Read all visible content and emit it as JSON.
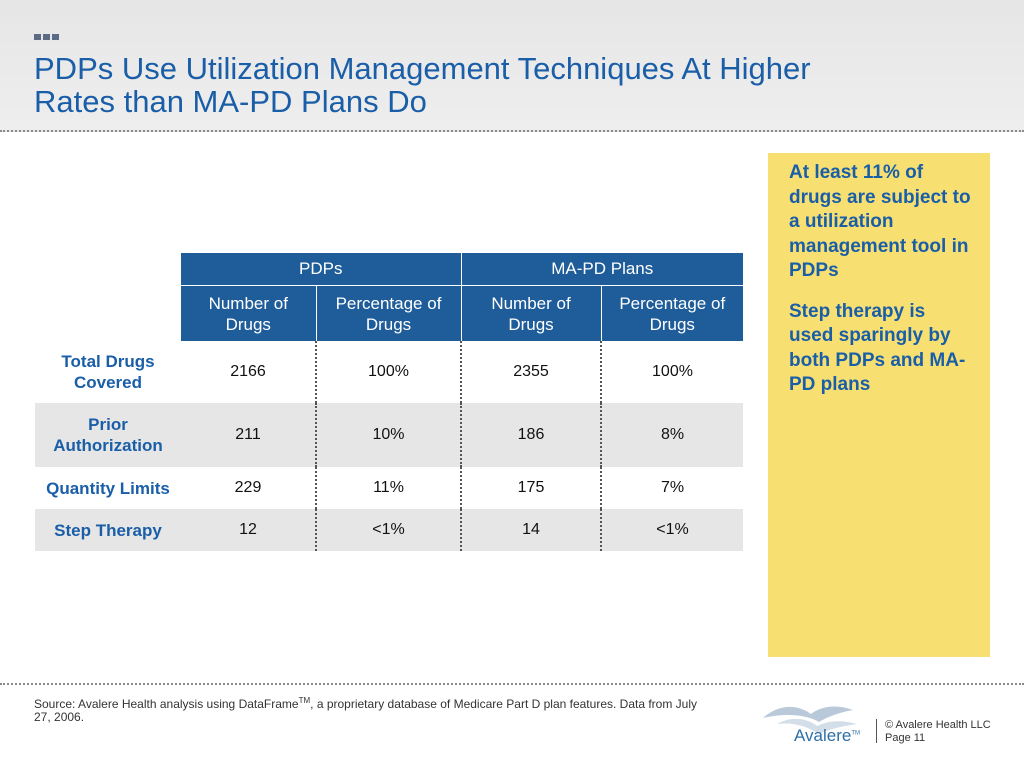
{
  "slide": {
    "title_line1": "PDPs Use Utilization Management Techniques At Higher",
    "title_line2": "Rates than MA-PD Plans Do"
  },
  "table": {
    "group_headers": [
      "PDPs",
      "MA-PD Plans"
    ],
    "sub_headers": [
      {
        "line1": "Number of",
        "line2": "Drugs"
      },
      {
        "line1": "Percentage of",
        "line2": "Drugs"
      },
      {
        "line1": "Number of",
        "line2": "Drugs"
      },
      {
        "line1": "Percentage of",
        "line2": "Drugs"
      }
    ],
    "rows": [
      {
        "label_line1": "Total Drugs",
        "label_line2": "Covered",
        "values": [
          "2166",
          "100%",
          "2355",
          "100%"
        ]
      },
      {
        "label_line1": "Prior",
        "label_line2": "Authorization",
        "values": [
          "211",
          "10%",
          "186",
          "8%"
        ]
      },
      {
        "label_line1": "Quantity Limits",
        "label_line2": "",
        "values": [
          "229",
          "11%",
          "175",
          "7%"
        ]
      },
      {
        "label_line1": "Step Therapy",
        "label_line2": "",
        "values": [
          "12",
          "<1%",
          "14",
          "<1%"
        ]
      }
    ]
  },
  "callout": {
    "point1": "At least 11% of drugs are subject to a utilization management tool in PDPs",
    "point2": "Step therapy is used sparingly by both PDPs and MA-PD plans",
    "color": "#f7e071"
  },
  "footer": {
    "source_prefix": "Source:  Avalere Health analysis using DataFrame",
    "source_tm": "TM",
    "source_suffix": ", a proprietary database of Medicare Part D plan features. Data from July 27, 2006.",
    "logo_text": "Avalere",
    "logo_tm": "TM",
    "copyright": "© Avalere Health LLC",
    "page": "Page 11"
  },
  "colors": {
    "title": "#1a5ea8",
    "table_header": "#1e5c9a",
    "row_shade": "#e6e6e6"
  }
}
